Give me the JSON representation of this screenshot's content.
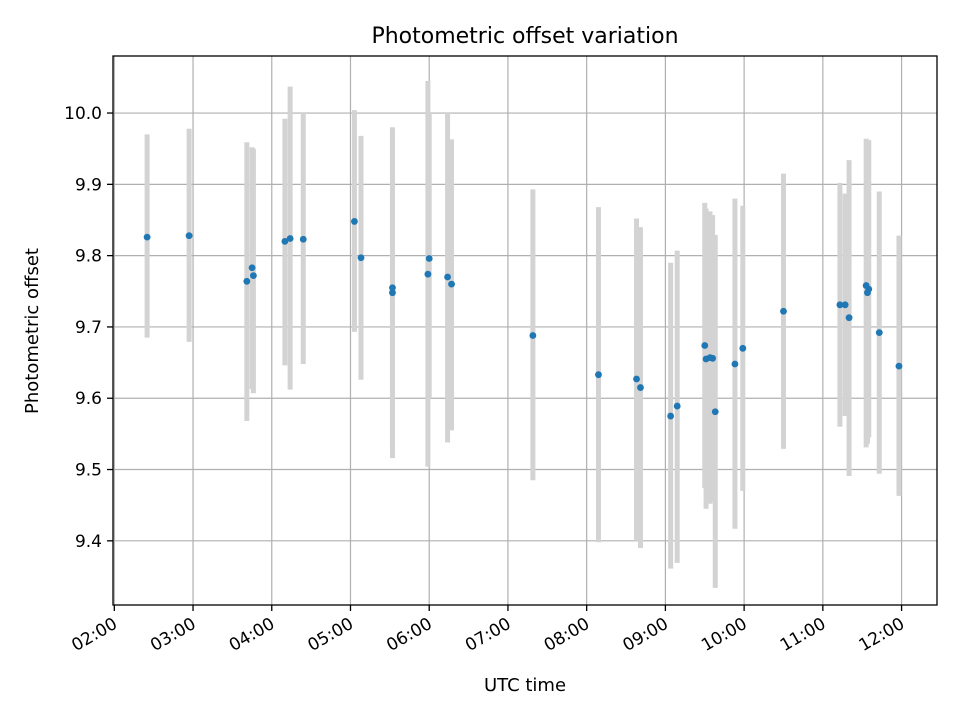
{
  "chart_data": {
    "type": "scatter",
    "title": "Photometric offset variation",
    "xlabel": "UTC time",
    "ylabel": "Photometric offset",
    "x_unit": "UTC time of day (hours)",
    "xlim": [
      "01:59",
      "12:27"
    ],
    "ylim": [
      9.31,
      10.08
    ],
    "x_ticks": [
      "02:00",
      "03:00",
      "04:00",
      "05:00",
      "06:00",
      "07:00",
      "08:00",
      "09:00",
      "10:00",
      "11:00",
      "12:00"
    ],
    "y_ticks": [
      "9.4",
      "9.5",
      "9.6",
      "9.7",
      "9.8",
      "9.9",
      "10.0"
    ],
    "grid": true,
    "marker_color": "#1f77b4",
    "errorbar_color": "#d3d3d3",
    "points": [
      {
        "x": "02:25",
        "y": 9.826,
        "low": 9.685,
        "high": 9.97
      },
      {
        "x": "02:57",
        "y": 9.828,
        "low": 9.679,
        "high": 9.978
      },
      {
        "x": "03:41",
        "y": 9.764,
        "low": 9.568,
        "high": 9.959
      },
      {
        "x": "03:45",
        "y": 9.783,
        "low": 9.613,
        "high": 9.952
      },
      {
        "x": "03:46",
        "y": 9.772,
        "low": 9.607,
        "high": 9.95
      },
      {
        "x": "04:10",
        "y": 9.82,
        "low": 9.646,
        "high": 9.992
      },
      {
        "x": "04:14",
        "y": 9.824,
        "low": 9.612,
        "high": 10.037
      },
      {
        "x": "04:24",
        "y": 9.823,
        "low": 9.648,
        "high": 10.0
      },
      {
        "x": "05:03",
        "y": 9.848,
        "low": 9.693,
        "high": 10.004
      },
      {
        "x": "05:08",
        "y": 9.797,
        "low": 9.626,
        "high": 9.968
      },
      {
        "x": "05:32",
        "y": 9.748,
        "low": 9.516,
        "high": 9.98
      },
      {
        "x": "05:32",
        "y": 9.755,
        "low": 9.53,
        "high": 9.975
      },
      {
        "x": "05:59",
        "y": 9.774,
        "low": 9.504,
        "high": 10.045
      },
      {
        "x": "06:00",
        "y": 9.796,
        "low": 9.6,
        "high": 10.0
      },
      {
        "x": "06:14",
        "y": 9.77,
        "low": 9.538,
        "high": 10.0
      },
      {
        "x": "06:17",
        "y": 9.76,
        "low": 9.555,
        "high": 9.963
      },
      {
        "x": "07:19",
        "y": 9.688,
        "low": 9.485,
        "high": 9.893
      },
      {
        "x": "08:09",
        "y": 9.633,
        "low": 9.398,
        "high": 9.868
      },
      {
        "x": "08:38",
        "y": 9.627,
        "low": 9.4,
        "high": 9.852
      },
      {
        "x": "08:41",
        "y": 9.615,
        "low": 9.39,
        "high": 9.84
      },
      {
        "x": "09:04",
        "y": 9.575,
        "low": 9.361,
        "high": 9.79
      },
      {
        "x": "09:09",
        "y": 9.589,
        "low": 9.369,
        "high": 9.807
      },
      {
        "x": "09:30",
        "y": 9.674,
        "low": 9.474,
        "high": 9.874
      },
      {
        "x": "09:31",
        "y": 9.655,
        "low": 9.445,
        "high": 9.866
      },
      {
        "x": "09:34",
        "y": 9.657,
        "low": 9.452,
        "high": 9.862
      },
      {
        "x": "09:36",
        "y": 9.656,
        "low": 9.456,
        "high": 9.857
      },
      {
        "x": "09:38",
        "y": 9.581,
        "low": 9.334,
        "high": 9.829
      },
      {
        "x": "09:53",
        "y": 9.648,
        "low": 9.417,
        "high": 9.88
      },
      {
        "x": "09:59",
        "y": 9.67,
        "low": 9.47,
        "high": 9.87
      },
      {
        "x": "10:30",
        "y": 9.722,
        "low": 9.529,
        "high": 9.915
      },
      {
        "x": "11:13",
        "y": 9.731,
        "low": 9.56,
        "high": 9.902
      },
      {
        "x": "11:17",
        "y": 9.731,
        "low": 9.575,
        "high": 9.887
      },
      {
        "x": "11:20",
        "y": 9.713,
        "low": 9.491,
        "high": 9.934
      },
      {
        "x": "11:33",
        "y": 9.758,
        "low": 9.531,
        "high": 9.964
      },
      {
        "x": "11:34",
        "y": 9.748,
        "low": 9.536,
        "high": 9.962
      },
      {
        "x": "11:35",
        "y": 9.753,
        "low": 9.545,
        "high": 9.962
      },
      {
        "x": "11:43",
        "y": 9.692,
        "low": 9.494,
        "high": 9.89
      },
      {
        "x": "11:58",
        "y": 9.645,
        "low": 9.463,
        "high": 9.828
      }
    ]
  }
}
